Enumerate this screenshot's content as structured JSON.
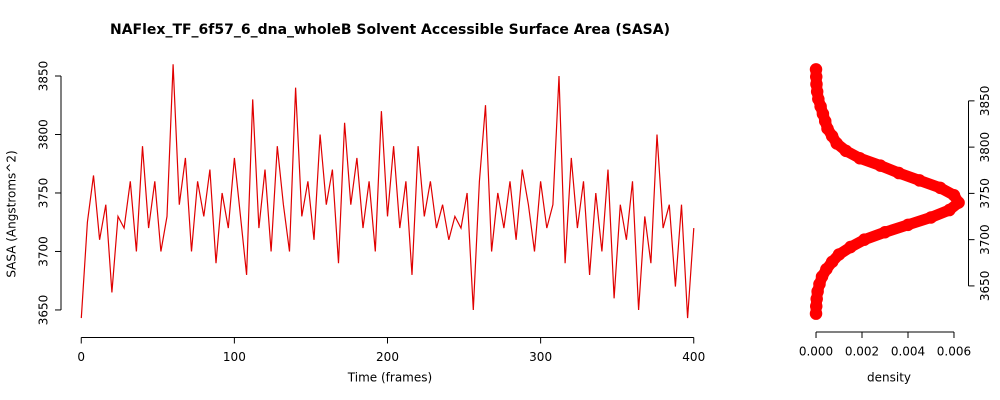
{
  "chart_data": [
    {
      "type": "line",
      "title": "NAFlex_TF_6f57_6_dna_wholeB Solvent Accessible Surface Area (SASA)",
      "x_label": "Time (frames)",
      "y_label": "SASA (Angstroms^2)",
      "color": "#e00000",
      "x": [
        0,
        4,
        8,
        12,
        16,
        20,
        24,
        28,
        32,
        36,
        40,
        44,
        48,
        52,
        56,
        60,
        64,
        68,
        72,
        76,
        80,
        84,
        88,
        92,
        96,
        100,
        104,
        108,
        112,
        116,
        120,
        124,
        128,
        132,
        136,
        140,
        144,
        148,
        152,
        156,
        160,
        164,
        168,
        172,
        176,
        180,
        184,
        188,
        192,
        196,
        200,
        204,
        208,
        212,
        216,
        220,
        224,
        228,
        232,
        236,
        240,
        244,
        248,
        252,
        256,
        260,
        264,
        268,
        272,
        276,
        280,
        284,
        288,
        292,
        296,
        300,
        304,
        308,
        312,
        316,
        320,
        324,
        328,
        332,
        336,
        340,
        344,
        348,
        352,
        356,
        360,
        364,
        368,
        372,
        376,
        380,
        384,
        388,
        392,
        396,
        400
      ],
      "values": [
        3643,
        3725,
        3765,
        3710,
        3740,
        3665,
        3730,
        3720,
        3760,
        3700,
        3790,
        3720,
        3760,
        3700,
        3730,
        3860,
        3740,
        3780,
        3700,
        3760,
        3730,
        3770,
        3690,
        3750,
        3720,
        3780,
        3730,
        3680,
        3830,
        3720,
        3770,
        3700,
        3790,
        3740,
        3700,
        3840,
        3730,
        3760,
        3710,
        3800,
        3740,
        3770,
        3690,
        3810,
        3740,
        3780,
        3720,
        3760,
        3700,
        3820,
        3730,
        3790,
        3720,
        3760,
        3680,
        3790,
        3730,
        3760,
        3720,
        3740,
        3710,
        3730,
        3720,
        3750,
        3650,
        3760,
        3825,
        3700,
        3750,
        3720,
        3760,
        3710,
        3770,
        3740,
        3700,
        3760,
        3720,
        3740,
        3850,
        3690,
        3780,
        3720,
        3760,
        3680,
        3750,
        3700,
        3770,
        3660,
        3740,
        3710,
        3760,
        3650,
        3730,
        3690,
        3800,
        3720,
        3740,
        3670,
        3740,
        3643,
        3720
      ],
      "xlim": [
        -8,
        408
      ],
      "xticks": [
        0,
        100,
        200,
        300,
        400
      ],
      "ylim": [
        3635,
        3870
      ],
      "yticks": [
        3650,
        3700,
        3750,
        3800,
        3850
      ]
    },
    {
      "type": "scatter",
      "x_label": "density",
      "color": "#ff0000",
      "y_axis_side": "right",
      "x": [
        0,
        1e-05,
        3e-05,
        7e-05,
        0.00015,
        0.00026,
        0.00045,
        0.0007,
        0.001,
        0.0015,
        0.0021,
        0.003,
        0.004,
        0.005,
        0.0058,
        0.0062,
        0.006,
        0.0054,
        0.0045,
        0.0036,
        0.0028,
        0.0019,
        0.0013,
        0.0009,
        0.0007,
        0.0005,
        0.0004,
        0.0003,
        0.0002,
        0.0001,
        5e-05,
        2e-05,
        1e-05,
        0
      ],
      "values": [
        3620,
        3628,
        3636,
        3644,
        3652,
        3660,
        3668,
        3676,
        3684,
        3692,
        3700,
        3708,
        3716,
        3724,
        3732,
        3740,
        3748,
        3756,
        3764,
        3772,
        3780,
        3788,
        3796,
        3804,
        3812,
        3820,
        3828,
        3836,
        3844,
        3852,
        3860,
        3868,
        3876,
        3884
      ],
      "xlim": [
        -0.00024,
        0.00624
      ],
      "xticks": [
        {
          "value": 0,
          "label": "0.000"
        },
        {
          "value": 0.002,
          "label": "0.002"
        },
        {
          "value": 0.004,
          "label": "0.004"
        },
        {
          "value": 0.006,
          "label": "0.006"
        }
      ],
      "ylim": [
        3611,
        3892
      ],
      "yticks": [
        3650,
        3700,
        3750,
        3800,
        3850
      ]
    }
  ]
}
